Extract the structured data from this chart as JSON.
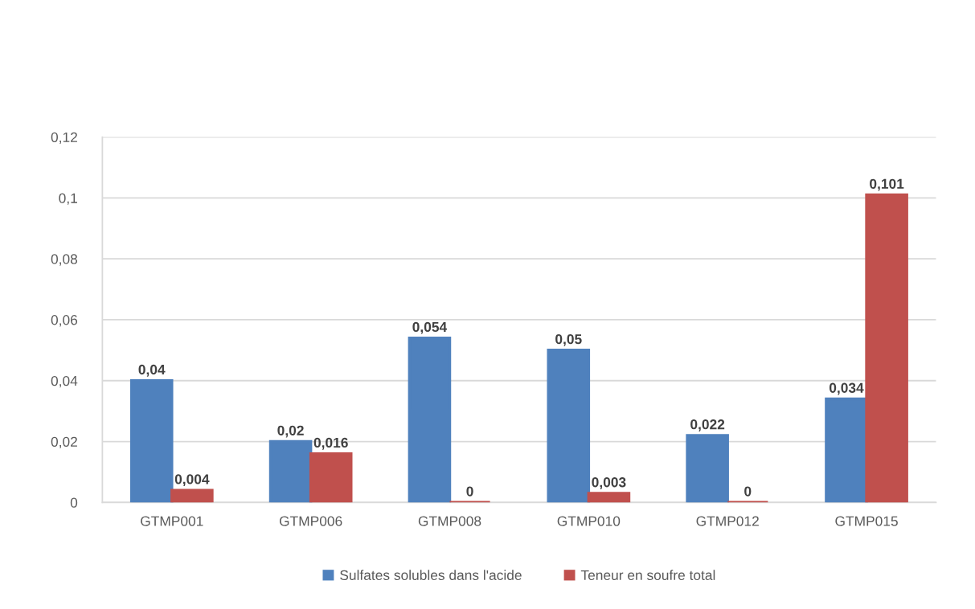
{
  "chart_data": {
    "type": "bar",
    "categories": [
      "GTMP001",
      "GTMP006",
      "GTMP008",
      "GTMP010",
      "GTMP012",
      "GTMP015"
    ],
    "series": [
      {
        "name": "Sulfates solubles dans l'acide",
        "color": "#4f81bd",
        "values": [
          0.04,
          0.02,
          0.054,
          0.05,
          0.022,
          0.034
        ],
        "value_labels": [
          "0,04",
          "0,02",
          "0,054",
          "0,05",
          "0,022",
          "0,034"
        ]
      },
      {
        "name": "Teneur en soufre total",
        "color": "#c0504d",
        "values": [
          0.004,
          0.016,
          0,
          0.003,
          0,
          0.101
        ],
        "value_labels": [
          "0,004",
          "0,016",
          "0",
          "0,003",
          "0",
          "0,101"
        ]
      }
    ],
    "ylim": [
      0,
      0.12
    ],
    "yticks": [
      0,
      {
        "value": 0.02,
        "label": "0,02"
      },
      {
        "value": 0.04,
        "label": "0,04"
      },
      {
        "value": 0.06,
        "label": "0,06"
      },
      {
        "value": 0.08,
        "label": "0,08"
      },
      {
        "value": 0.1,
        "label": "0,1"
      },
      {
        "value": 0.12,
        "label": "0,12"
      }
    ],
    "grid": "y",
    "legend": "bottom"
  }
}
